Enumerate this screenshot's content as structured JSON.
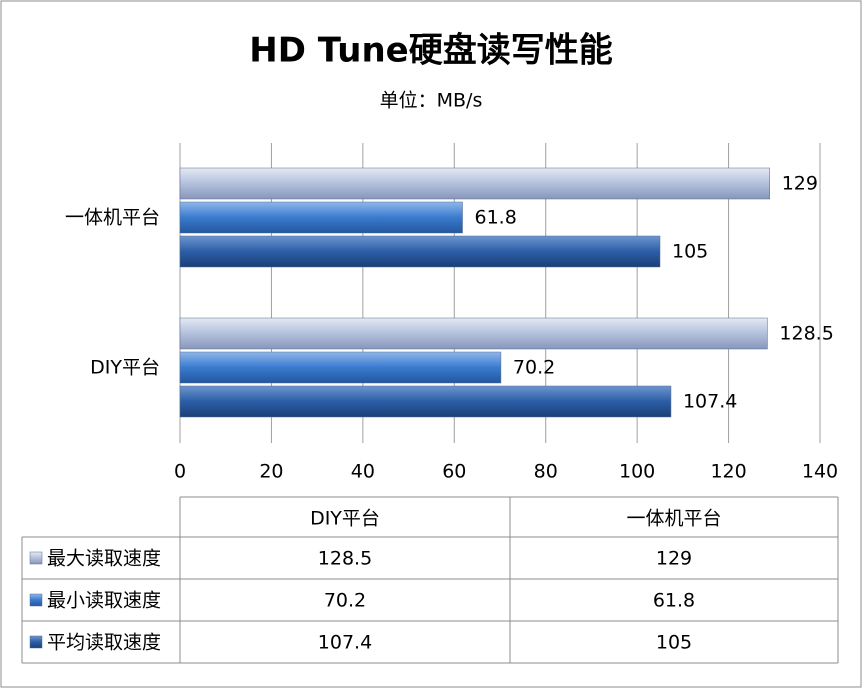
{
  "chart_data": {
    "type": "bar",
    "orientation": "horizontal",
    "title": "HD Tune硬盘读写性能",
    "subtitle": "单位：MB/s",
    "categories": [
      "DIY平台",
      "一体机平台"
    ],
    "series": [
      {
        "name": "最大读取速度",
        "color": "#b3c0dc",
        "values": [
          128.5,
          129
        ]
      },
      {
        "name": "最小读取速度",
        "color": "#3a7ace",
        "values": [
          70.2,
          61.8
        ]
      },
      {
        "name": "平均读取速度",
        "color": "#2c5ea6",
        "values": [
          107.4,
          105
        ]
      }
    ],
    "xlim": [
      0,
      140
    ],
    "xticks": [
      0,
      20,
      40,
      60,
      80,
      100,
      120,
      140
    ],
    "grid": true
  }
}
